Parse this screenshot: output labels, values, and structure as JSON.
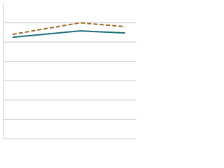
{
  "chart_data": {
    "type": "line",
    "x": [
      0,
      3,
      5
    ],
    "xlim": [
      -0.4,
      5.5
    ],
    "ylim": [
      0,
      7
    ],
    "yticks": [
      1,
      2,
      3,
      4,
      5,
      6
    ],
    "grid": true,
    "series": [
      {
        "color": "#1b6f78",
        "dash": false,
        "values": [
          5.25,
          5.58,
          5.47
        ]
      },
      {
        "color": "#9c6a25",
        "dash": true,
        "values": [
          5.4,
          6.0,
          5.8
        ]
      }
    ]
  }
}
